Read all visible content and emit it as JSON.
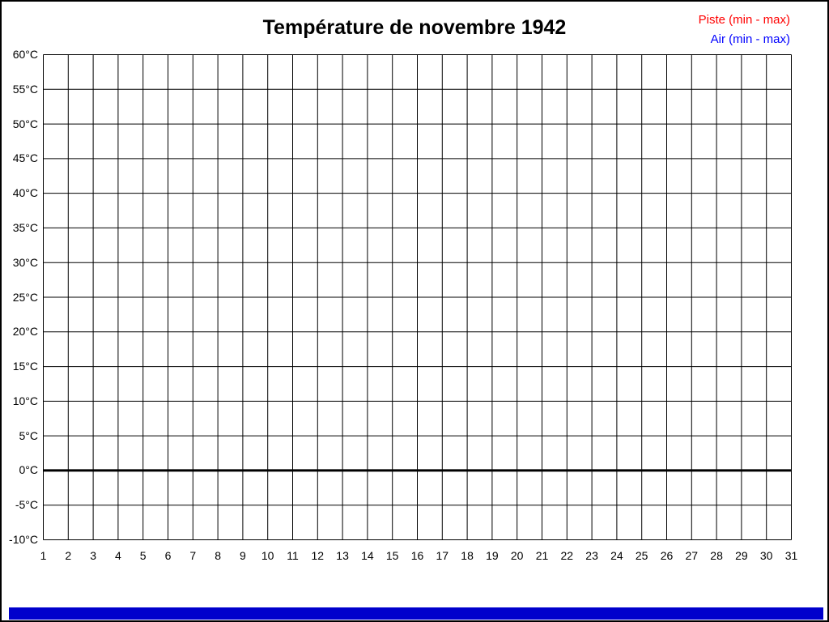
{
  "window": {
    "background_color": "#ffffff",
    "frame_color": "#000000"
  },
  "header": {
    "title": "Température de novembre 1942"
  },
  "legend": {
    "items": [
      {
        "label": "Piste (min - max)",
        "color": "#ff0000"
      },
      {
        "label": "Air (min - max)",
        "color": "#0000ff"
      }
    ]
  },
  "chart_data": {
    "type": "line",
    "title": "Température de novembre 1942",
    "xlabel": "",
    "ylabel": "",
    "xlim": [
      1,
      31
    ],
    "ylim": [
      -10,
      60
    ],
    "y_tick_step": 5,
    "grid": true,
    "legend_position": "top-right",
    "zero_line_value": 0,
    "x_tick_labels": [
      "1",
      "2",
      "3",
      "4",
      "5",
      "6",
      "7",
      "8",
      "9",
      "10",
      "11",
      "12",
      "13",
      "14",
      "15",
      "16",
      "17",
      "18",
      "19",
      "20",
      "21",
      "22",
      "23",
      "24",
      "25",
      "26",
      "27",
      "28",
      "29",
      "30",
      "31"
    ],
    "y_tick_labels": [
      "60°C",
      "55°C",
      "50°C",
      "45°C",
      "40°C",
      "35°C",
      "30°C",
      "25°C",
      "20°C",
      "15°C",
      "10°C",
      "5°C",
      "0°C",
      "-5°C",
      "-10°C"
    ],
    "series": [
      {
        "name": "Piste (min - max)",
        "color": "#ff0000",
        "values": []
      },
      {
        "name": "Air (min - max)",
        "color": "#0000ff",
        "values": []
      }
    ]
  },
  "footer": {
    "progress_bar": {
      "color": "#0000cc",
      "fill_percent": 100
    }
  }
}
